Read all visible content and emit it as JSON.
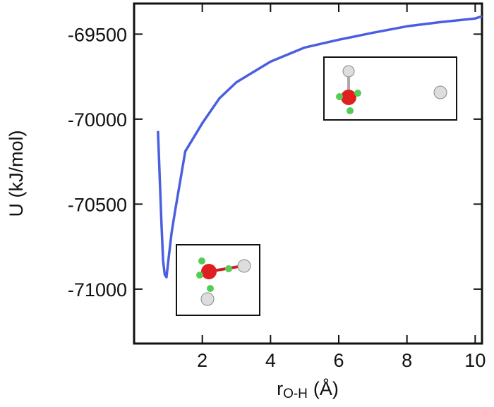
{
  "chart_data": {
    "type": "line",
    "x_label": "r",
    "x_label_sub": "O-H",
    "x_label_unit": "(Å)",
    "y_label": "U (kJ/mol)",
    "xlim": [
      0,
      10.2
    ],
    "xticks": [
      2,
      4,
      6,
      8,
      10
    ],
    "ylim": [
      -71320,
      -69320
    ],
    "yticks": [
      -69500,
      -70000,
      -70500,
      -71000
    ],
    "x": [
      0.7,
      0.75,
      0.8,
      0.85,
      0.9,
      0.95,
      1.0,
      1.1,
      1.2,
      1.5,
      2,
      2.5,
      3,
      4,
      5,
      6,
      7,
      8,
      9,
      10,
      10.2
    ],
    "series": [
      {
        "color": "#4a5fe0",
        "values": [
          -70070,
          -70335,
          -70600,
          -70834,
          -70915,
          -70930,
          -70840,
          -70668,
          -70543,
          -70190,
          -70024,
          -69878,
          -69783,
          -69662,
          -69579,
          -69533,
          -69492,
          -69454,
          -69429,
          -69408,
          -69395
        ]
      }
    ]
  }
}
